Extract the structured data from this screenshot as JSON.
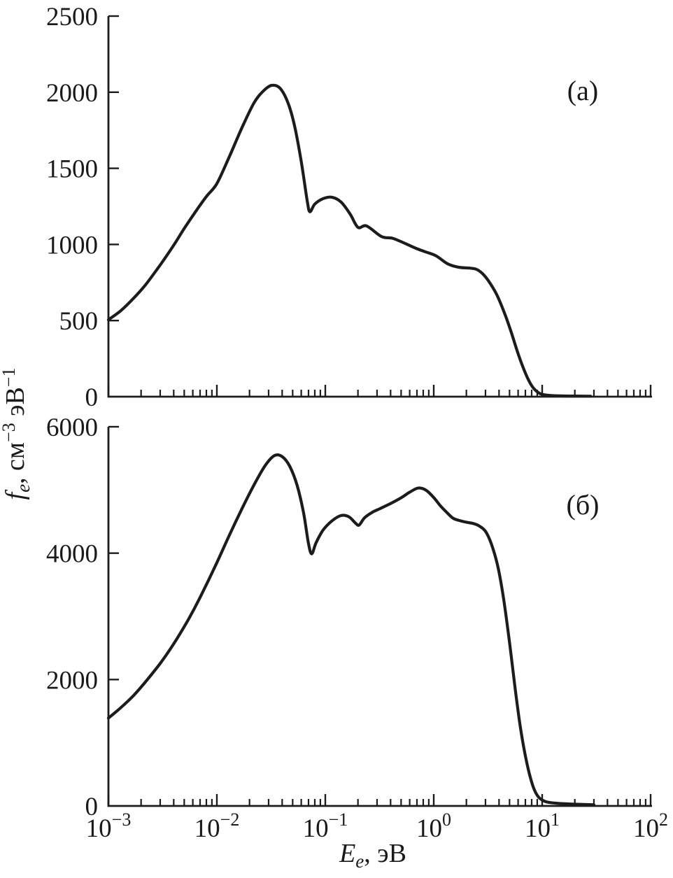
{
  "figure": {
    "background": "#ffffff",
    "line_color": "#1c1c1c",
    "text_color": "#1a1a1a",
    "xlabel": {
      "symbol": "E",
      "subscript": "e",
      "suffix": ", эВ"
    },
    "ylabel": {
      "symbol": "f",
      "subscript": "e",
      "part1": ", см",
      "sup1": "−3",
      "part2": " эВ",
      "sup2": "−1"
    }
  },
  "chart_data": [
    {
      "type": "line",
      "panel_label": "(а)",
      "x_axis": {
        "scale": "log",
        "label": "Eₑ, эВ",
        "min": 0.001,
        "max": 100,
        "major_tick_exponents": [
          -3,
          -2,
          -1,
          0,
          1,
          2
        ],
        "tick_label_base": "10",
        "tick_label_exponents": [
          "−3",
          "−2",
          "−1",
          "0",
          "1",
          "2"
        ],
        "show_tick_labels": false,
        "minor_ticks": "mantissa 2-9 each decade"
      },
      "y_axis": {
        "label": "fₑ, см⁻³ эВ⁻¹",
        "min": 0,
        "max": 2500,
        "ticks": [
          0,
          500,
          1000,
          1500,
          2000,
          2500
        ]
      },
      "series": [
        {
          "name": "fe-distribution-a",
          "points": [
            [
              0.001,
              505
            ],
            [
              0.0013,
              565
            ],
            [
              0.0017,
              645
            ],
            [
              0.0022,
              735
            ],
            [
              0.003,
              865
            ],
            [
              0.004,
              995
            ],
            [
              0.005,
              1105
            ],
            [
              0.0065,
              1225
            ],
            [
              0.008,
              1315
            ],
            [
              0.01,
              1400
            ],
            [
              0.013,
              1575
            ],
            [
              0.017,
              1765
            ],
            [
              0.022,
              1930
            ],
            [
              0.027,
              2010
            ],
            [
              0.032,
              2045
            ],
            [
              0.038,
              2028
            ],
            [
              0.045,
              1935
            ],
            [
              0.052,
              1780
            ],
            [
              0.06,
              1545
            ],
            [
              0.068,
              1290
            ],
            [
              0.072,
              1215
            ],
            [
              0.08,
              1265
            ],
            [
              0.095,
              1300
            ],
            [
              0.115,
              1310
            ],
            [
              0.14,
              1278
            ],
            [
              0.17,
              1198
            ],
            [
              0.2,
              1112
            ],
            [
              0.24,
              1122
            ],
            [
              0.33,
              1052
            ],
            [
              0.42,
              1040
            ],
            [
              0.55,
              1005
            ],
            [
              0.7,
              972
            ],
            [
              0.85,
              950
            ],
            [
              1.05,
              925
            ],
            [
              1.35,
              872
            ],
            [
              1.7,
              850
            ],
            [
              2.1,
              845
            ],
            [
              2.45,
              838
            ],
            [
              2.8,
              810
            ],
            [
              3.2,
              760
            ],
            [
              3.8,
              672
            ],
            [
              4.5,
              548
            ],
            [
              5.2,
              420
            ],
            [
              6,
              282
            ],
            [
              7,
              155
            ],
            [
              8,
              72
            ],
            [
              9,
              32
            ],
            [
              10,
              15
            ],
            [
              12,
              8
            ],
            [
              15,
              5
            ],
            [
              20,
              4
            ],
            [
              28,
              3
            ]
          ]
        }
      ]
    },
    {
      "type": "line",
      "panel_label": "(б)",
      "x_axis": {
        "scale": "log",
        "label": "Eₑ, эВ",
        "min": 0.001,
        "max": 100,
        "major_tick_exponents": [
          -3,
          -2,
          -1,
          0,
          1,
          2
        ],
        "tick_label_base": "10",
        "tick_label_exponents": [
          "−3",
          "−2",
          "−1",
          "0",
          "1",
          "2"
        ],
        "show_tick_labels": true,
        "minor_ticks": "mantissa 2-9 each decade"
      },
      "y_axis": {
        "label": "fₑ, см⁻³ эВ⁻¹",
        "min": 0,
        "max": 6000,
        "ticks": [
          0,
          2000,
          4000,
          6000
        ]
      },
      "series": [
        {
          "name": "fe-distribution-b",
          "points": [
            [
              0.001,
              1390
            ],
            [
              0.0013,
              1555
            ],
            [
              0.0017,
              1745
            ],
            [
              0.0022,
              1965
            ],
            [
              0.003,
              2255
            ],
            [
              0.004,
              2565
            ],
            [
              0.0055,
              2960
            ],
            [
              0.007,
              3300
            ],
            [
              0.01,
              3850
            ],
            [
              0.013,
              4280
            ],
            [
              0.017,
              4700
            ],
            [
              0.022,
              5080
            ],
            [
              0.028,
              5390
            ],
            [
              0.034,
              5545
            ],
            [
              0.04,
              5528
            ],
            [
              0.047,
              5375
            ],
            [
              0.055,
              5070
            ],
            [
              0.063,
              4640
            ],
            [
              0.07,
              4150
            ],
            [
              0.075,
              3990
            ],
            [
              0.082,
              4160
            ],
            [
              0.095,
              4360
            ],
            [
              0.115,
              4510
            ],
            [
              0.14,
              4595
            ],
            [
              0.165,
              4575
            ],
            [
              0.19,
              4475
            ],
            [
              0.205,
              4445
            ],
            [
              0.23,
              4560
            ],
            [
              0.27,
              4645
            ],
            [
              0.32,
              4705
            ],
            [
              0.4,
              4785
            ],
            [
              0.5,
              4875
            ],
            [
              0.6,
              4965
            ],
            [
              0.72,
              5030
            ],
            [
              0.85,
              4995
            ],
            [
              1.0,
              4880
            ],
            [
              1.15,
              4750
            ],
            [
              1.3,
              4655
            ],
            [
              1.5,
              4555
            ],
            [
              1.7,
              4520
            ],
            [
              2.0,
              4490
            ],
            [
              2.3,
              4470
            ],
            [
              2.6,
              4435
            ],
            [
              3.0,
              4345
            ],
            [
              3.4,
              4145
            ],
            [
              3.9,
              3790
            ],
            [
              4.4,
              3290
            ],
            [
              5.0,
              2590
            ],
            [
              5.6,
              1890
            ],
            [
              6.3,
              1240
            ],
            [
              7.2,
              690
            ],
            [
              8.2,
              320
            ],
            [
              9.2,
              145
            ],
            [
              10.5,
              75
            ],
            [
              12,
              52
            ],
            [
              15,
              38
            ],
            [
              20,
              28
            ],
            [
              30,
              18
            ]
          ]
        }
      ]
    }
  ]
}
